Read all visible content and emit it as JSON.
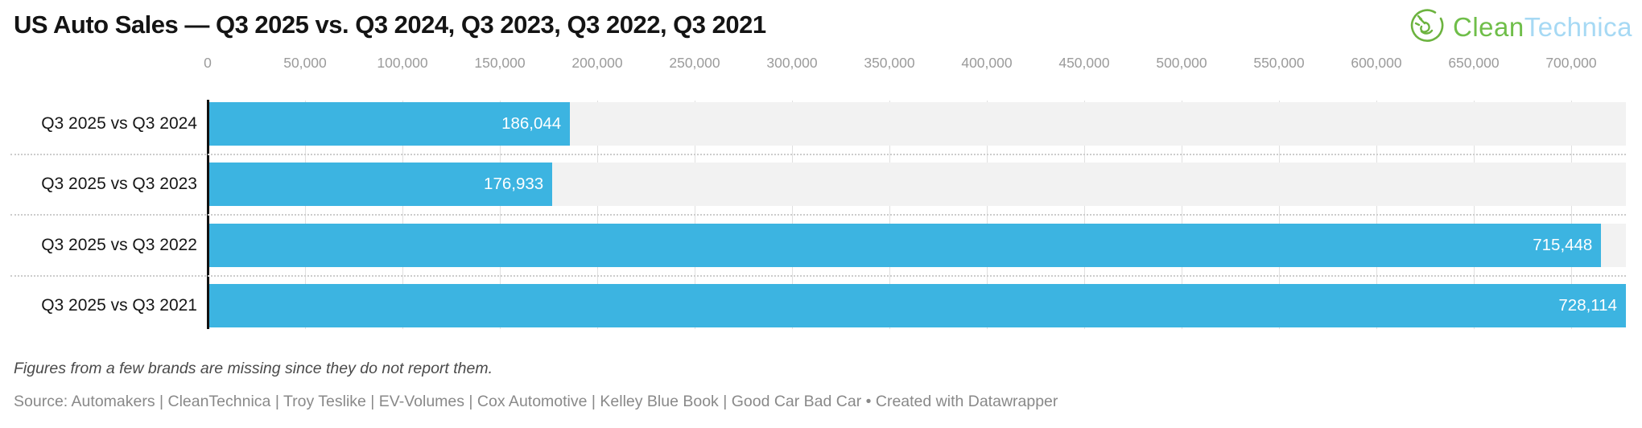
{
  "title": "US Auto Sales — Q3 2025 vs. Q3 2024, Q3 2023, Q3 2022, Q3 2021",
  "logo": {
    "text_primary": "Clean",
    "text_secondary": "Technica",
    "color_primary": "#6fbe49",
    "color_secondary": "#a6d9f4",
    "icon_color": "#6cb33f"
  },
  "chart_data": {
    "type": "bar",
    "orientation": "horizontal",
    "categories": [
      "Q3 2025 vs Q3 2024",
      "Q3 2025 vs Q3 2023",
      "Q3 2025 vs Q3 2022",
      "Q3 2025 vs Q3 2021"
    ],
    "values": [
      186044,
      176933,
      715448,
      728114
    ],
    "value_labels": [
      "186,044",
      "176,933",
      "715,448",
      "728,114"
    ],
    "xlim": [
      0,
      728114
    ],
    "x_ticks": [
      0,
      50000,
      100000,
      150000,
      200000,
      250000,
      300000,
      350000,
      400000,
      450000,
      500000,
      550000,
      600000,
      650000,
      700000
    ],
    "x_tick_labels": [
      "0",
      "50,000",
      "100,000",
      "150,000",
      "200,000",
      "250,000",
      "300,000",
      "350,000",
      "400,000",
      "450,000",
      "500,000",
      "550,000",
      "600,000",
      "650,000",
      "700,000"
    ],
    "title": "US Auto Sales — Q3 2025 vs. Q3 2024, Q3 2023, Q3 2022, Q3 2021",
    "xlabel": "",
    "ylabel": "",
    "grid": true,
    "legend": "none",
    "bar_color": "#3cb4e1",
    "band_color": "#f2f2f2",
    "gridline_color": "#e0e0e0",
    "axis_line_color": "#111111",
    "tick_label_color": "#9b9b9b",
    "value_label_color": "#ffffff"
  },
  "notes": "Figures from a few brands are missing since they do not report them.",
  "source": "Source: Automakers | CleanTechnica | Troy Teslike | EV-Volumes | Cox Automotive | Kelley Blue Book | Good Car Bad Car • Created with Datawrapper"
}
